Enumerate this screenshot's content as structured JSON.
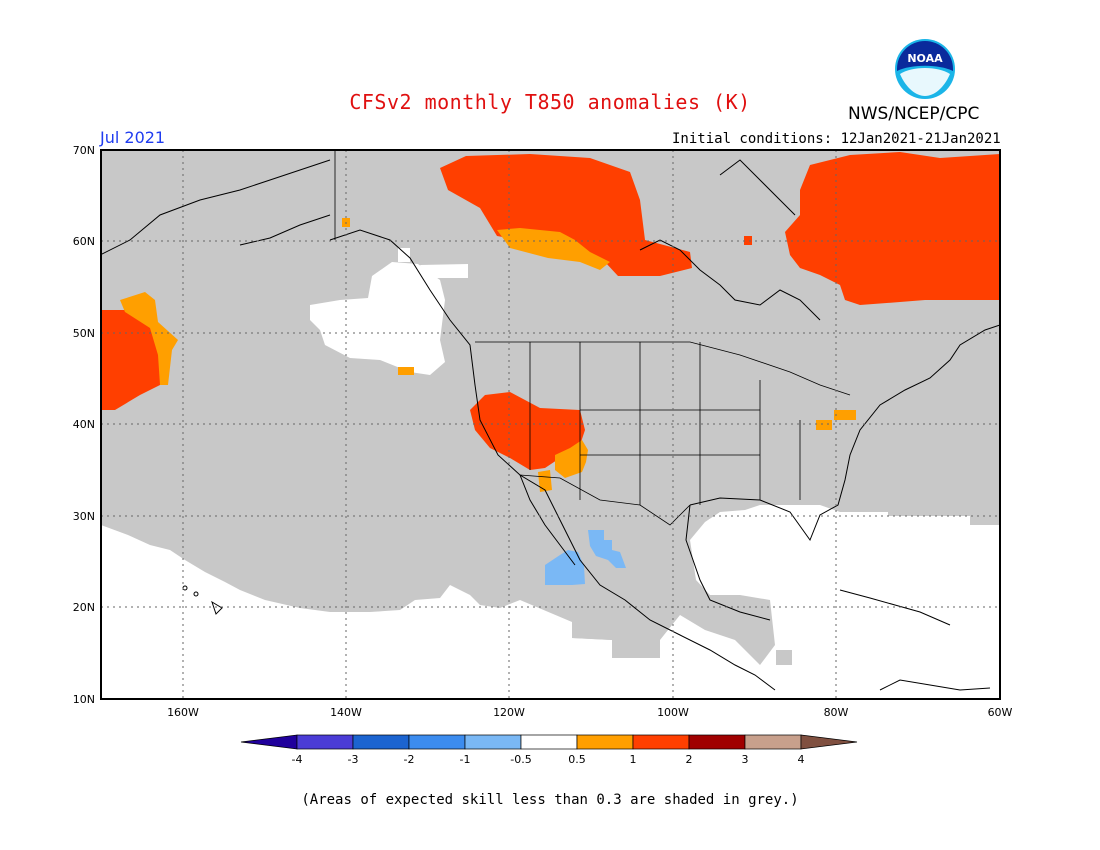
{
  "header": {
    "title": "CFSv2 monthly T850 anomalies (K)",
    "organization": "NWS/NCEP/CPC",
    "logo_text": "NOAA",
    "valid_month": "Jul 2021",
    "initial_conditions": "Initial conditions: 12Jan2021-21Jan2021"
  },
  "map": {
    "region": "North America",
    "lat_labels": [
      "70N",
      "60N",
      "50N",
      "40N",
      "30N",
      "20N",
      "10N"
    ],
    "lon_labels": [
      "160W",
      "140W",
      "120W",
      "100W",
      "80W",
      "60W"
    ],
    "lat_range": [
      10,
      70
    ],
    "lon_range": [
      -170,
      -60
    ],
    "grid": "dotted",
    "colors": {
      "low_skill_grey": "#c8c8c8",
      "anom_0.5_to_1": "#ff9f00",
      "anom_1_to_2": "#ff3f00",
      "anom_-1_to_-0.5": "#7ab8f5",
      "near_zero": "#ffffff"
    }
  },
  "colorbar": {
    "labels": [
      "-4",
      "-3",
      "-2",
      "-1",
      "-0.5",
      "0.5",
      "1",
      "2",
      "3",
      "4"
    ],
    "colors": [
      "#20009c",
      "#4b3cd6",
      "#1c64d0",
      "#3c8cef",
      "#7ab8f5",
      "#ffffff",
      "#ff9f00",
      "#ff3f00",
      "#a00000",
      "#c8a08c",
      "#805040"
    ]
  },
  "footnote": "(Areas of expected skill less than 0.3 are shaded in grey.)"
}
